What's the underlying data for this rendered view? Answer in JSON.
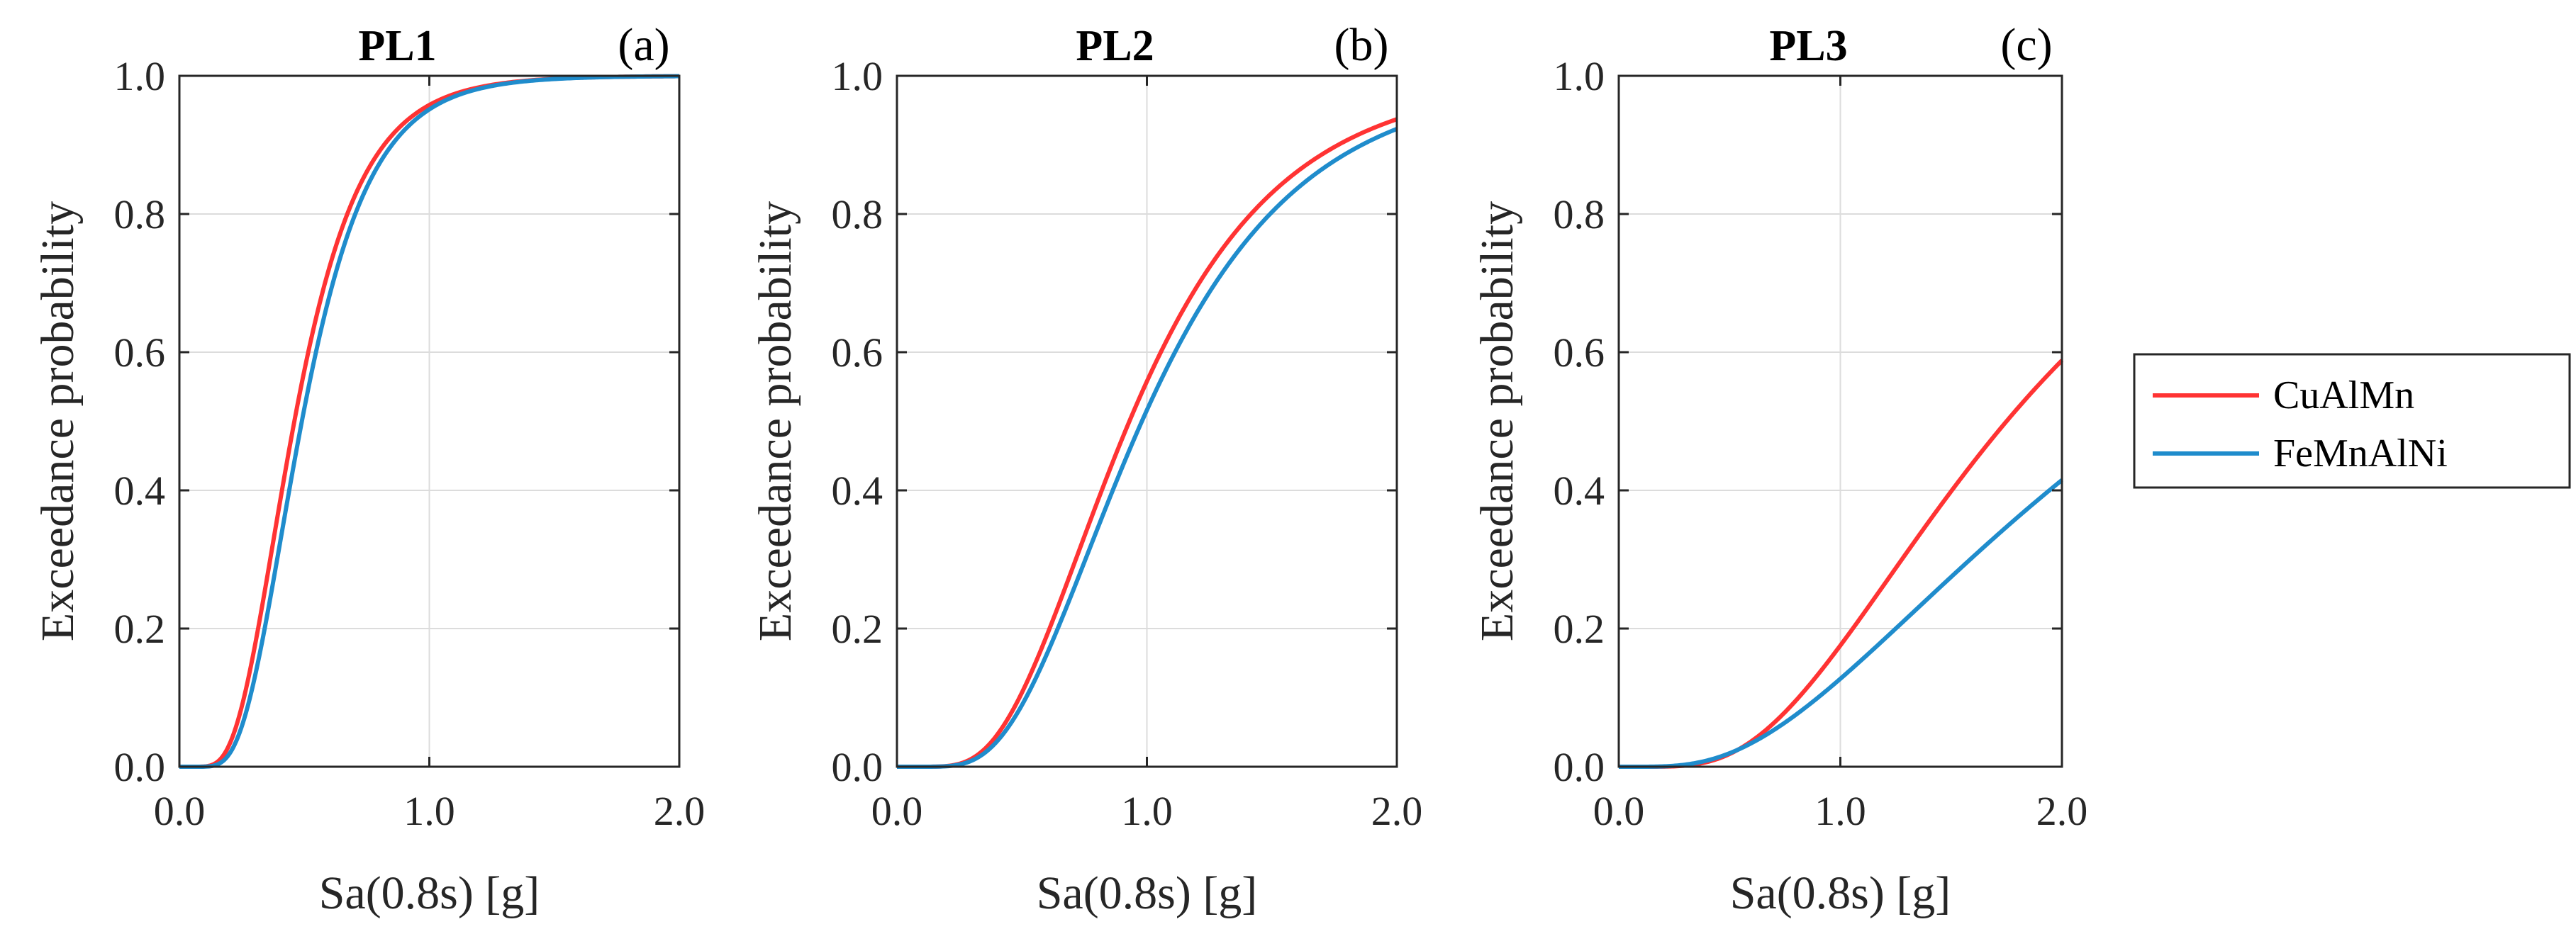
{
  "chart_data": [
    {
      "type": "line",
      "title": "PL1",
      "panel_tag": "(a)",
      "xlabel": "Sa(0.8s) [g]",
      "ylabel": "Exceedance probability",
      "xlim": [
        0,
        2
      ],
      "ylim": [
        0,
        1
      ],
      "xticks": [
        "0.0",
        "1.0",
        "2.0"
      ],
      "yticks": [
        "0.0",
        "0.2",
        "0.4",
        "0.6",
        "0.8",
        "1.0"
      ],
      "grid": true,
      "series": [
        {
          "name": "CuAlMn",
          "median": 0.46,
          "beta": 0.45
        },
        {
          "name": "FeMnAlNi",
          "median": 0.49,
          "beta": 0.43
        }
      ]
    },
    {
      "type": "line",
      "title": "PL2",
      "panel_tag": "(b)",
      "xlabel": "Sa(0.8s) [g]",
      "ylabel": "Exceedance probability",
      "xlim": [
        0,
        2
      ],
      "ylim": [
        0,
        1
      ],
      "xticks": [
        "0.0",
        "1.0",
        "2.0"
      ],
      "yticks": [
        "0.0",
        "0.2",
        "0.4",
        "0.6",
        "0.8",
        "1.0"
      ],
      "grid": true,
      "series": [
        {
          "name": "CuAlMn",
          "median": 0.93,
          "beta": 0.5
        },
        {
          "name": "FeMnAlNi",
          "median": 0.98,
          "beta": 0.5
        }
      ]
    },
    {
      "type": "line",
      "title": "PL3",
      "panel_tag": "(c)",
      "xlabel": "Sa(0.8s) [g]",
      "ylabel": "Exceedance probability",
      "xlim": [
        0,
        2
      ],
      "ylim": [
        0,
        1
      ],
      "xticks": [
        "0.0",
        "1.0",
        "2.0"
      ],
      "yticks": [
        "0.0",
        "0.2",
        "0.4",
        "0.6",
        "0.8",
        "1.0"
      ],
      "grid": true,
      "series": [
        {
          "name": "CuAlMn",
          "median": 1.75,
          "beta": 0.6
        },
        {
          "name": "FeMnAlNi",
          "median": 2.35,
          "beta": 0.75
        }
      ]
    }
  ],
  "legend": {
    "entries": [
      {
        "name": "CuAlMn",
        "color": "#ff3333"
      },
      {
        "name": "FeMnAlNi",
        "color": "#1f8ccc"
      }
    ]
  },
  "colors": {
    "CuAlMn": "#ff3333",
    "FeMnAlNi": "#1f8ccc",
    "grid": "#dcdcdc",
    "axis": "#262626"
  }
}
